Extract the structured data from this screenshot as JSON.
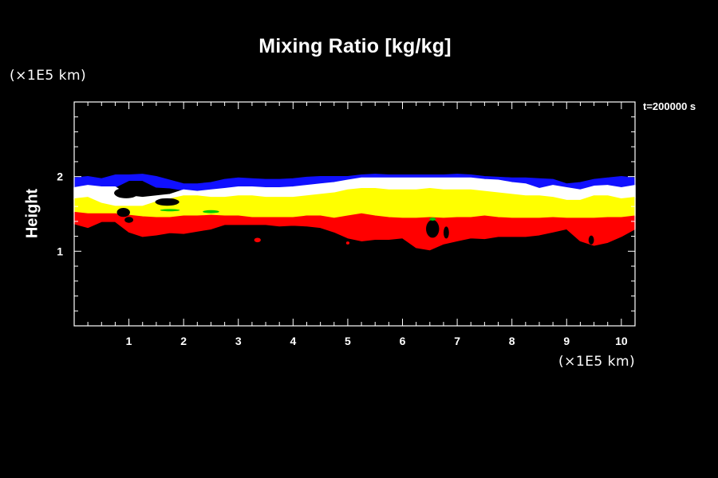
{
  "chart_data": {
    "type": "area",
    "title": "Mixing Ratio [kg/kg]",
    "xlabel": "",
    "xunit": "(×1E5 km)",
    "ylabel": "Height",
    "yunit": "(×1E5 km)",
    "time_label": "t=200000 s",
    "xlim": [
      0,
      10.25
    ],
    "ylim": [
      0,
      3.0
    ],
    "x_ticks": [
      1,
      2,
      3,
      4,
      5,
      6,
      7,
      8,
      9,
      10
    ],
    "y_ticks": [
      1,
      2
    ],
    "colors": {
      "background": "#000000",
      "axes": "#ffffff",
      "band_top": "#1010ff",
      "band_upper": "#ffffff",
      "band_middle": "#ffff00",
      "band_lower": "#ff0000",
      "patches": "#00cc00"
    },
    "x": [
      0,
      0.25,
      0.5,
      0.75,
      1.0,
      1.25,
      1.5,
      1.75,
      2.0,
      2.25,
      2.5,
      2.75,
      3.0,
      3.25,
      3.5,
      3.75,
      4.0,
      4.25,
      4.5,
      4.75,
      5.0,
      5.25,
      5.5,
      5.75,
      6.0,
      6.25,
      6.5,
      6.75,
      7.0,
      7.25,
      7.5,
      7.75,
      8.0,
      8.25,
      8.5,
      8.75,
      9.0,
      9.25,
      9.5,
      9.75,
      10.0,
      10.25
    ],
    "bands": [
      {
        "top": [
          1.98,
          2.0,
          1.97,
          2.02,
          2.02,
          2.03,
          2.0,
          1.95,
          1.9,
          1.9,
          1.92,
          1.96,
          1.98,
          1.97,
          1.96,
          1.96,
          1.97,
          1.99,
          2.0,
          2.0,
          2.0,
          2.02,
          2.03,
          2.02,
          2.02,
          2.02,
          2.02,
          2.02,
          2.03,
          2.02,
          2.0,
          1.99,
          1.98,
          1.98,
          1.97,
          1.96,
          1.9,
          1.92,
          1.96,
          1.98,
          2.0,
          1.98
        ],
        "bottom": [
          1.85,
          1.88,
          1.86,
          1.86,
          1.95,
          1.95,
          1.86,
          1.85,
          1.82,
          1.8,
          1.82,
          1.84,
          1.86,
          1.86,
          1.85,
          1.85,
          1.86,
          1.88,
          1.9,
          1.92,
          1.95,
          1.98,
          1.98,
          1.98,
          1.98,
          1.98,
          1.98,
          1.98,
          1.98,
          1.98,
          1.96,
          1.95,
          1.92,
          1.9,
          1.84,
          1.88,
          1.85,
          1.82,
          1.87,
          1.88,
          1.85,
          1.88
        ]
      },
      {
        "top": [
          1.85,
          1.88,
          1.86,
          1.86,
          1.74,
          1.72,
          1.74,
          1.76,
          1.82,
          1.8,
          1.82,
          1.84,
          1.86,
          1.86,
          1.85,
          1.85,
          1.86,
          1.88,
          1.9,
          1.92,
          1.95,
          1.98,
          1.98,
          1.98,
          1.98,
          1.98,
          1.98,
          1.98,
          1.98,
          1.98,
          1.96,
          1.95,
          1.92,
          1.9,
          1.84,
          1.88,
          1.85,
          1.82,
          1.87,
          1.88,
          1.85,
          1.88
        ],
        "bottom": [
          1.7,
          1.72,
          1.64,
          1.6,
          1.6,
          1.6,
          1.66,
          1.7,
          1.74,
          1.74,
          1.72,
          1.72,
          1.74,
          1.74,
          1.72,
          1.72,
          1.72,
          1.74,
          1.76,
          1.78,
          1.82,
          1.84,
          1.84,
          1.82,
          1.82,
          1.82,
          1.84,
          1.82,
          1.82,
          1.82,
          1.8,
          1.78,
          1.76,
          1.74,
          1.74,
          1.72,
          1.68,
          1.68,
          1.74,
          1.74,
          1.7,
          1.72
        ]
      },
      {
        "top": [
          1.7,
          1.72,
          1.64,
          1.6,
          1.6,
          1.6,
          1.66,
          1.7,
          1.74,
          1.74,
          1.72,
          1.72,
          1.74,
          1.74,
          1.72,
          1.72,
          1.72,
          1.74,
          1.76,
          1.78,
          1.82,
          1.84,
          1.84,
          1.82,
          1.82,
          1.82,
          1.84,
          1.82,
          1.82,
          1.82,
          1.8,
          1.78,
          1.76,
          1.74,
          1.74,
          1.72,
          1.68,
          1.68,
          1.74,
          1.74,
          1.7,
          1.72
        ],
        "bottom": [
          1.52,
          1.5,
          1.5,
          1.5,
          1.48,
          1.46,
          1.45,
          1.45,
          1.47,
          1.47,
          1.48,
          1.47,
          1.47,
          1.45,
          1.45,
          1.45,
          1.45,
          1.47,
          1.47,
          1.44,
          1.47,
          1.5,
          1.47,
          1.45,
          1.44,
          1.44,
          1.45,
          1.44,
          1.45,
          1.45,
          1.47,
          1.45,
          1.44,
          1.44,
          1.44,
          1.45,
          1.44,
          1.44,
          1.44,
          1.45,
          1.45,
          1.47
        ]
      },
      {
        "top": [
          1.52,
          1.5,
          1.5,
          1.5,
          1.48,
          1.46,
          1.45,
          1.45,
          1.47,
          1.47,
          1.48,
          1.47,
          1.47,
          1.45,
          1.45,
          1.45,
          1.45,
          1.47,
          1.47,
          1.44,
          1.47,
          1.5,
          1.47,
          1.45,
          1.44,
          1.44,
          1.45,
          1.44,
          1.45,
          1.45,
          1.47,
          1.45,
          1.44,
          1.44,
          1.44,
          1.45,
          1.44,
          1.44,
          1.44,
          1.45,
          1.45,
          1.47
        ],
        "bottom": [
          1.37,
          1.32,
          1.4,
          1.4,
          1.26,
          1.2,
          1.22,
          1.25,
          1.24,
          1.27,
          1.3,
          1.36,
          1.36,
          1.36,
          1.36,
          1.34,
          1.35,
          1.34,
          1.32,
          1.26,
          1.18,
          1.14,
          1.16,
          1.16,
          1.18,
          1.05,
          1.02,
          1.1,
          1.14,
          1.18,
          1.17,
          1.2,
          1.2,
          1.2,
          1.22,
          1.26,
          1.3,
          1.14,
          1.08,
          1.12,
          1.2,
          1.3
        ]
      }
    ]
  }
}
